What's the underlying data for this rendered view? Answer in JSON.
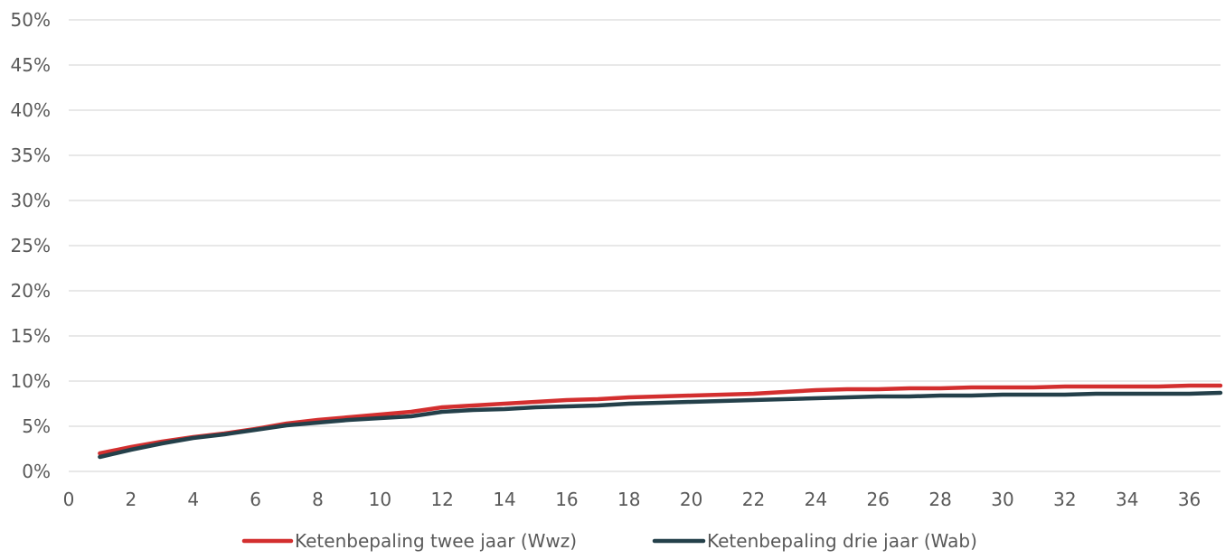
{
  "chart_data": {
    "type": "line",
    "title": "",
    "xlabel": "",
    "ylabel": "",
    "xlim": [
      0,
      37
    ],
    "ylim": [
      0,
      0.5
    ],
    "x_ticks": [
      0,
      2,
      4,
      6,
      8,
      10,
      12,
      14,
      16,
      18,
      20,
      22,
      24,
      26,
      28,
      30,
      32,
      34,
      36
    ],
    "x_tick_labels": [
      "0",
      "2",
      "4",
      "6",
      "8",
      "10",
      "12",
      "14",
      "16",
      "18",
      "20",
      "22",
      "24",
      "26",
      "28",
      "30",
      "32",
      "34",
      "36"
    ],
    "y_ticks": [
      0,
      0.05,
      0.1,
      0.15,
      0.2,
      0.25,
      0.3,
      0.35,
      0.4,
      0.45,
      0.5
    ],
    "y_tick_labels": [
      "0%",
      "5%",
      "10%",
      "15%",
      "20%",
      "25%",
      "30%",
      "35%",
      "40%",
      "45%",
      "50%"
    ],
    "grid": "horizontal",
    "legend_position": "bottom-center",
    "x": [
      1,
      2,
      3,
      4,
      5,
      6,
      7,
      8,
      9,
      10,
      11,
      12,
      13,
      14,
      15,
      16,
      17,
      18,
      19,
      20,
      21,
      22,
      23,
      24,
      25,
      26,
      27,
      28,
      29,
      30,
      31,
      32,
      33,
      34,
      35,
      36,
      37
    ],
    "series": [
      {
        "name": "Ketenbepaling twee jaar (Wwz)",
        "color": "#d32f2f",
        "values": [
          0.02,
          0.027,
          0.033,
          0.038,
          0.042,
          0.047,
          0.053,
          0.057,
          0.06,
          0.063,
          0.066,
          0.071,
          0.073,
          0.075,
          0.077,
          0.079,
          0.08,
          0.082,
          0.083,
          0.084,
          0.085,
          0.086,
          0.088,
          0.09,
          0.091,
          0.091,
          0.092,
          0.092,
          0.093,
          0.093,
          0.093,
          0.094,
          0.094,
          0.094,
          0.094,
          0.095,
          0.095
        ]
      },
      {
        "name": "Ketenbepaling drie jaar (Wab)",
        "color": "#24404a",
        "values": [
          0.016,
          0.024,
          0.031,
          0.037,
          0.041,
          0.046,
          0.051,
          0.054,
          0.057,
          0.059,
          0.061,
          0.066,
          0.068,
          0.069,
          0.071,
          0.072,
          0.073,
          0.075,
          0.076,
          0.077,
          0.078,
          0.079,
          0.08,
          0.081,
          0.082,
          0.083,
          0.083,
          0.084,
          0.084,
          0.085,
          0.085,
          0.085,
          0.086,
          0.086,
          0.086,
          0.086,
          0.087
        ]
      }
    ]
  }
}
